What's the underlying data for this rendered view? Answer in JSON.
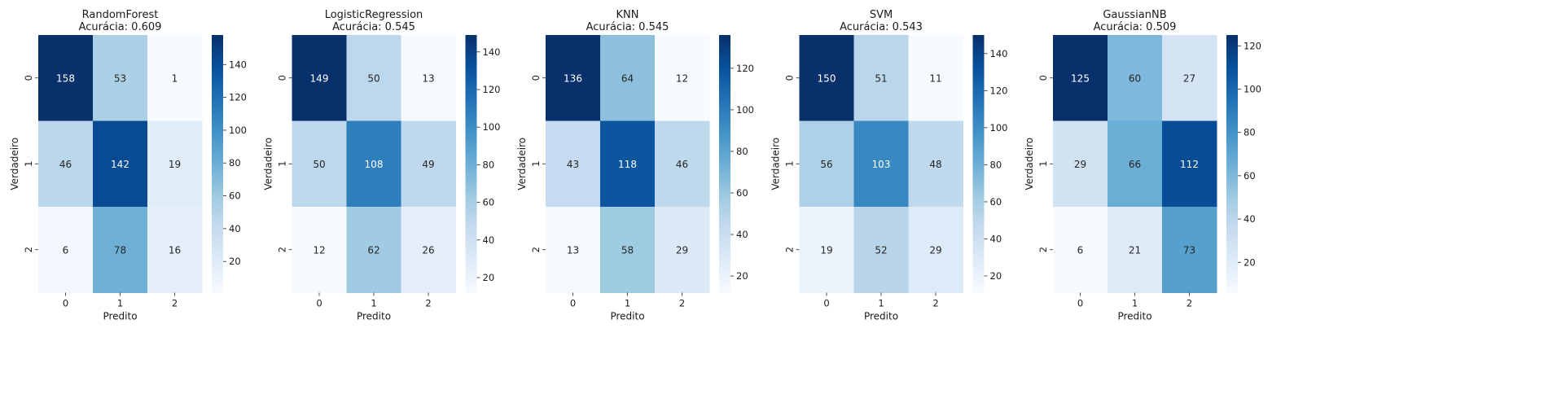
{
  "chart_data": [
    {
      "type": "heatmap",
      "title": "RandomForest\nAcurácia: 0.609",
      "xlabel": "Predito",
      "ylabel": "Verdadeiro",
      "x_categories": [
        "0",
        "1",
        "2"
      ],
      "y_categories": [
        "0",
        "1",
        "2"
      ],
      "matrix": [
        [
          158,
          53,
          1
        ],
        [
          46,
          142,
          19
        ],
        [
          6,
          78,
          16
        ]
      ],
      "colorbar": {
        "min": 1,
        "max": 158,
        "ticks": [
          20,
          40,
          60,
          80,
          100,
          120,
          140
        ]
      },
      "colormap": "Blues"
    },
    {
      "type": "heatmap",
      "title": "LogisticRegression\nAcurácia: 0.545",
      "xlabel": "Predito",
      "ylabel": "Verdadeiro",
      "x_categories": [
        "0",
        "1",
        "2"
      ],
      "y_categories": [
        "0",
        "1",
        "2"
      ],
      "matrix": [
        [
          149,
          50,
          13
        ],
        [
          50,
          108,
          49
        ],
        [
          12,
          62,
          26
        ]
      ],
      "colorbar": {
        "min": 12,
        "max": 149,
        "ticks": [
          20,
          40,
          60,
          80,
          100,
          120,
          140
        ]
      },
      "colormap": "Blues"
    },
    {
      "type": "heatmap",
      "title": "KNN\nAcurácia: 0.545",
      "xlabel": "Predito",
      "ylabel": "Verdadeiro",
      "x_categories": [
        "0",
        "1",
        "2"
      ],
      "y_categories": [
        "0",
        "1",
        "2"
      ],
      "matrix": [
        [
          136,
          64,
          12
        ],
        [
          43,
          118,
          46
        ],
        [
          13,
          58,
          29
        ]
      ],
      "colorbar": {
        "min": 12,
        "max": 136,
        "ticks": [
          20,
          40,
          60,
          80,
          100,
          120
        ]
      },
      "colormap": "Blues"
    },
    {
      "type": "heatmap",
      "title": "SVM\nAcurácia: 0.543",
      "xlabel": "Predito",
      "ylabel": "Verdadeiro",
      "x_categories": [
        "0",
        "1",
        "2"
      ],
      "y_categories": [
        "0",
        "1",
        "2"
      ],
      "matrix": [
        [
          150,
          51,
          11
        ],
        [
          56,
          103,
          48
        ],
        [
          19,
          52,
          29
        ]
      ],
      "colorbar": {
        "min": 11,
        "max": 150,
        "ticks": [
          20,
          40,
          60,
          80,
          100,
          120,
          140
        ]
      },
      "colormap": "Blues"
    },
    {
      "type": "heatmap",
      "title": "GaussianNB\nAcurácia: 0.509",
      "xlabel": "Predito",
      "ylabel": "Verdadeiro",
      "x_categories": [
        "0",
        "1",
        "2"
      ],
      "y_categories": [
        "0",
        "1",
        "2"
      ],
      "matrix": [
        [
          125,
          60,
          27
        ],
        [
          29,
          66,
          112
        ],
        [
          6,
          21,
          73
        ]
      ],
      "colorbar": {
        "min": 6,
        "max": 125,
        "ticks": [
          20,
          40,
          60,
          80,
          100,
          120
        ]
      },
      "colormap": "Blues"
    }
  ]
}
